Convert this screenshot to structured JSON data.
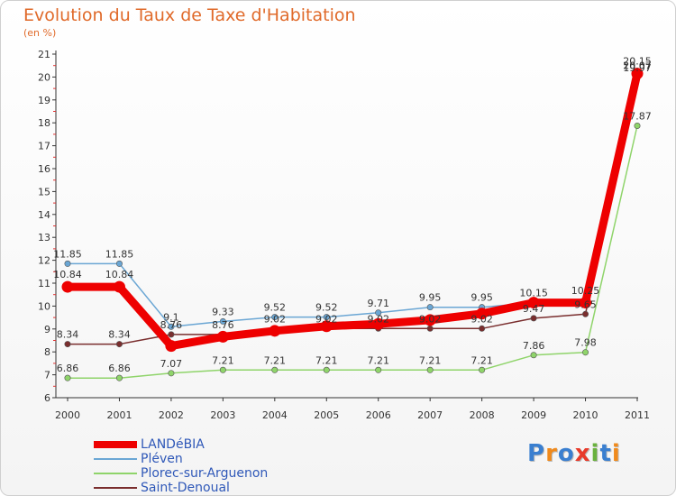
{
  "title": "Evolution du Taux de Taxe d'Habitation",
  "subtitle": "(en %)",
  "logo": {
    "letters": [
      {
        "ch": "P",
        "color": "#3a7fd0"
      },
      {
        "ch": "r",
        "color": "#f08a1c"
      },
      {
        "ch": "o",
        "color": "#3a7fd0"
      },
      {
        "ch": "x",
        "color": "#e83a2a"
      },
      {
        "ch": "i",
        "color": "#6ab23e"
      },
      {
        "ch": "t",
        "color": "#3a7fd0"
      },
      {
        "ch": "i",
        "color": "#f08a1c"
      }
    ]
  },
  "chart_data": {
    "type": "line",
    "categories": [
      "2000",
      "2001",
      "2002",
      "2003",
      "2004",
      "2005",
      "2006",
      "2007",
      "2008",
      "2009",
      "2010",
      "2011"
    ],
    "ylim": [
      6,
      21
    ],
    "yticks": [
      6,
      7,
      8,
      9,
      10,
      11,
      12,
      13,
      14,
      15,
      16,
      17,
      18,
      19,
      20,
      21
    ],
    "grid": false,
    "legend_position": "bottom-left",
    "series": [
      {
        "name": "LANDéBIA",
        "color": "#ee0000",
        "width": 9,
        "values": [
          10.84,
          10.84,
          8.26,
          8.66,
          8.92,
          9.12,
          9.22,
          9.39,
          9.67,
          10.15,
          10.15,
          20.15
        ],
        "labels": [
          "10.84",
          "10.84",
          "",
          "",
          "",
          "",
          "",
          "",
          "",
          "",
          "",
          "20.15"
        ]
      },
      {
        "name": "Pléven",
        "color": "#6aa6d4",
        "width": 1.5,
        "values": [
          11.85,
          11.85,
          9.1,
          9.33,
          9.52,
          9.52,
          9.71,
          9.95,
          9.95,
          10.15,
          10.25,
          19.97
        ],
        "labels": [
          "11.85",
          "11.85",
          "9.1",
          "9.33",
          "9.52",
          "9.52",
          "9.71",
          "9.95",
          "9.95",
          "10.15",
          "10.25",
          "19.97"
        ]
      },
      {
        "name": "Plorec-sur-Arguenon",
        "color": "#8fd46a",
        "width": 1.5,
        "values": [
          6.86,
          6.86,
          7.07,
          7.21,
          7.21,
          7.21,
          7.21,
          7.21,
          7.21,
          7.86,
          7.98,
          17.87
        ],
        "labels": [
          "6.86",
          "6.86",
          "7.07",
          "7.21",
          "7.21",
          "7.21",
          "7.21",
          "7.21",
          "7.21",
          "7.86",
          "7.98",
          "17.87"
        ]
      },
      {
        "name": "Saint-Denoual",
        "color": "#7a2e2e",
        "width": 1.5,
        "values": [
          8.34,
          8.34,
          8.76,
          8.76,
          9.02,
          9.02,
          9.02,
          9.02,
          9.02,
          9.47,
          9.65,
          20.07
        ],
        "labels": [
          "8.34",
          "8.34",
          "8.76",
          "8.76",
          "9.02",
          "9.02",
          "9.02",
          "9.02",
          "9.02",
          "9.47",
          "9.65",
          "20.07"
        ]
      }
    ]
  }
}
